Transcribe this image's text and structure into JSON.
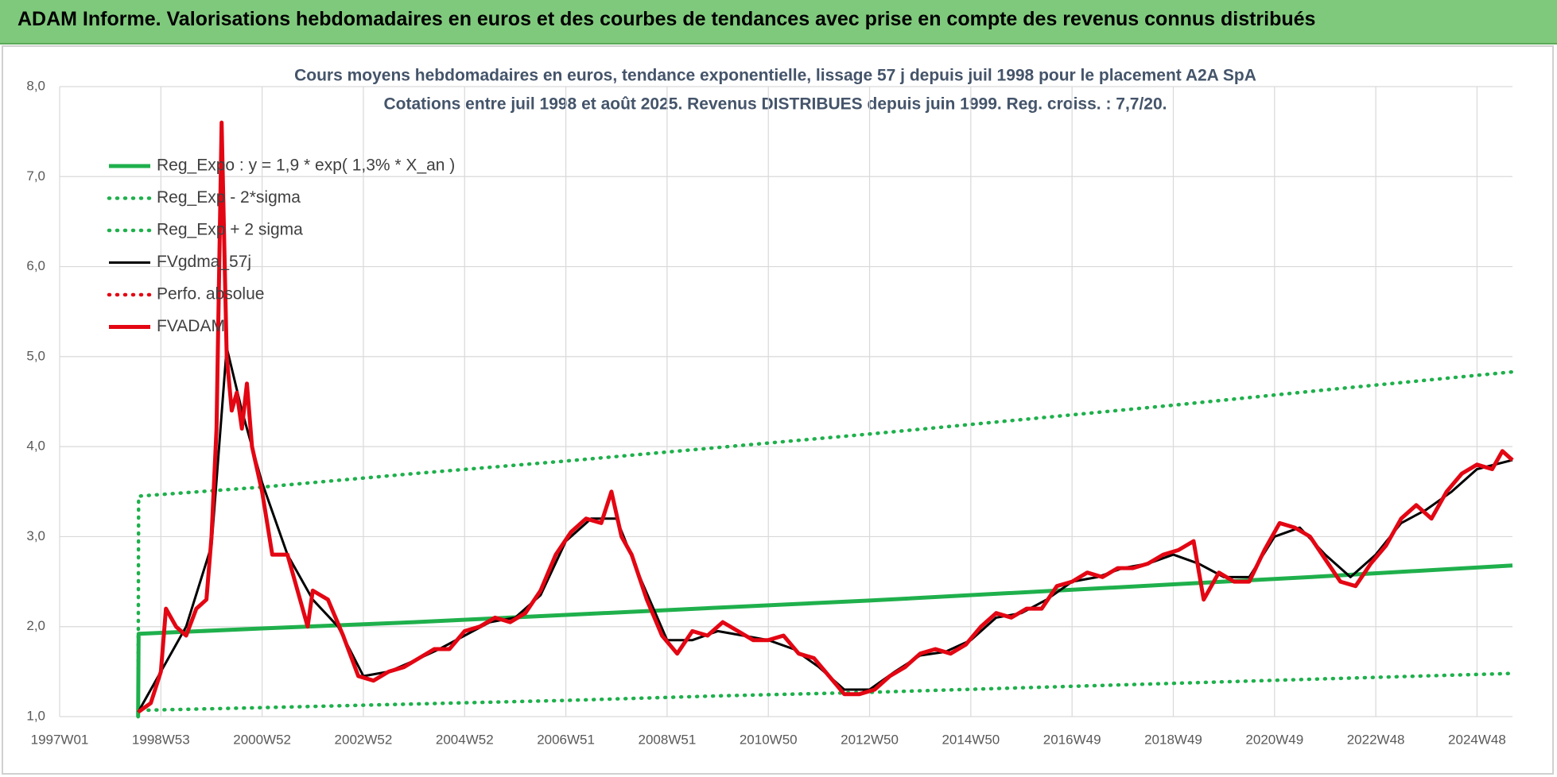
{
  "header": {
    "title": "ADAM Informe. Valorisations hebdomadaires en euros et des courbes de tendances avec prise en compte des revenus connus distribués"
  },
  "chart_data": {
    "type": "line",
    "title": "Cours moyens hebdomadaires en euros, tendance exponentielle, lissage 57 j depuis juil 1998 pour le placement A2A SpA",
    "subtitle": "Cotations entre juil 1998 et août 2025. Revenus DISTRIBUES depuis juin 1999. Reg. croiss. : 7,7/20.",
    "xlim": [
      1997,
      2025.7
    ],
    "xticks": [
      {
        "value": 1997,
        "label": "1997W01"
      },
      {
        "value": 1999,
        "label": "1998W53"
      },
      {
        "value": 2001,
        "label": "2000W52"
      },
      {
        "value": 2003,
        "label": "2002W52"
      },
      {
        "value": 2005,
        "label": "2004W52"
      },
      {
        "value": 2007,
        "label": "2006W51"
      },
      {
        "value": 2009,
        "label": "2008W51"
      },
      {
        "value": 2011,
        "label": "2010W50"
      },
      {
        "value": 2013,
        "label": "2012W50"
      },
      {
        "value": 2015,
        "label": "2014W50"
      },
      {
        "value": 2017,
        "label": "2016W49"
      },
      {
        "value": 2019,
        "label": "2018W49"
      },
      {
        "value": 2021,
        "label": "2020W49"
      },
      {
        "value": 2023,
        "label": "2022W48"
      },
      {
        "value": 2025,
        "label": "2024W48"
      }
    ],
    "ylim": [
      1,
      8
    ],
    "yticks": [
      {
        "value": 1,
        "label": "1,0"
      },
      {
        "value": 2,
        "label": "2,0"
      },
      {
        "value": 3,
        "label": "3,0"
      },
      {
        "value": 4,
        "label": "4,0"
      },
      {
        "value": 5,
        "label": "5,0"
      },
      {
        "value": 6,
        "label": "6,0"
      },
      {
        "value": 7,
        "label": "7,0"
      },
      {
        "value": 8,
        "label": "8,0"
      }
    ],
    "grid": true,
    "legend": "top-left",
    "series": [
      {
        "name": "Reg_Expo : y = 1,9 * exp( 1,3% *  X_an )",
        "color": "#1fb04c",
        "style": "solid",
        "x": [
          1998.55,
          1998.56,
          2001,
          2004,
          2007,
          2010,
          2013,
          2016,
          2019,
          2022,
          2025.7
        ],
        "values": [
          1.0,
          1.92,
          1.98,
          2.05,
          2.13,
          2.21,
          2.29,
          2.38,
          2.47,
          2.56,
          2.68
        ]
      },
      {
        "name": "Reg_Exp - 2*sigma",
        "color": "#1fb04c",
        "style": "dotted",
        "x": [
          1998.55,
          1998.56,
          2001,
          2004,
          2007,
          2010,
          2013,
          2016,
          2019,
          2022,
          2025.7
        ],
        "values": [
          1.0,
          1.07,
          1.1,
          1.14,
          1.18,
          1.23,
          1.27,
          1.32,
          1.37,
          1.42,
          1.48
        ]
      },
      {
        "name": "Reg_Exp + 2 sigma",
        "color": "#1fb04c",
        "style": "dotted",
        "x": [
          1998.55,
          1998.56,
          2001,
          2004,
          2007,
          2010,
          2013,
          2016,
          2019,
          2022,
          2025.7
        ],
        "values": [
          1.0,
          3.45,
          3.55,
          3.7,
          3.84,
          3.99,
          4.14,
          4.3,
          4.46,
          4.63,
          4.83
        ]
      },
      {
        "name": "FVgdma_57j",
        "color": "#000000",
        "style": "solid",
        "x": [
          1998.55,
          1999.0,
          1999.5,
          2000.0,
          2000.3,
          2000.6,
          2001.0,
          2001.5,
          2002.0,
          2002.5,
          2003.0,
          2003.5,
          2004.0,
          2004.5,
          2005.0,
          2005.5,
          2006.0,
          2006.5,
          2007.0,
          2007.5,
          2008.0,
          2008.5,
          2009.0,
          2009.5,
          2010.0,
          2010.5,
          2011.0,
          2011.5,
          2012.0,
          2012.5,
          2013.0,
          2013.5,
          2014.0,
          2014.5,
          2015.0,
          2015.5,
          2016.0,
          2016.5,
          2017.0,
          2017.5,
          2018.0,
          2018.5,
          2019.0,
          2019.5,
          2020.0,
          2020.5,
          2021.0,
          2021.5,
          2022.0,
          2022.5,
          2023.0,
          2023.5,
          2024.0,
          2024.5,
          2025.0,
          2025.7
        ],
        "values": [
          1.05,
          1.5,
          2.0,
          2.9,
          5.1,
          4.4,
          3.6,
          2.8,
          2.3,
          2.0,
          1.45,
          1.5,
          1.62,
          1.75,
          1.9,
          2.05,
          2.1,
          2.35,
          2.95,
          3.2,
          3.2,
          2.5,
          1.85,
          1.85,
          1.95,
          1.9,
          1.85,
          1.75,
          1.55,
          1.3,
          1.3,
          1.5,
          1.68,
          1.72,
          1.85,
          2.1,
          2.15,
          2.3,
          2.5,
          2.55,
          2.65,
          2.7,
          2.8,
          2.7,
          2.55,
          2.55,
          3.0,
          3.1,
          2.8,
          2.55,
          2.8,
          3.15,
          3.3,
          3.5,
          3.75,
          3.85
        ]
      },
      {
        "name": "Perfo. absolue",
        "color": "#e30613",
        "style": "dotted"
      },
      {
        "name": "FVADAM",
        "color": "#e30613",
        "style": "solid",
        "x": [
          1998.55,
          1998.8,
          1999.0,
          1999.1,
          1999.3,
          1999.5,
          1999.7,
          1999.9,
          2000.0,
          2000.1,
          2000.2,
          2000.3,
          2000.4,
          2000.5,
          2000.6,
          2000.7,
          2000.8,
          2001.0,
          2001.2,
          2001.5,
          2001.7,
          2001.9,
          2002.0,
          2002.3,
          2002.6,
          2002.9,
          2003.2,
          2003.5,
          2003.8,
          2004.1,
          2004.4,
          2004.7,
          2005.0,
          2005.3,
          2005.6,
          2005.9,
          2006.2,
          2006.5,
          2006.8,
          2007.1,
          2007.4,
          2007.7,
          2007.9,
          2008.1,
          2008.3,
          2008.6,
          2008.9,
          2009.2,
          2009.5,
          2009.8,
          2010.1,
          2010.4,
          2010.7,
          2011.0,
          2011.3,
          2011.6,
          2011.9,
          2012.2,
          2012.5,
          2012.8,
          2013.1,
          2013.4,
          2013.7,
          2014.0,
          2014.3,
          2014.6,
          2014.9,
          2015.2,
          2015.5,
          2015.8,
          2016.1,
          2016.4,
          2016.7,
          2017.0,
          2017.3,
          2017.6,
          2017.9,
          2018.2,
          2018.5,
          2018.8,
          2019.1,
          2019.4,
          2019.6,
          2019.9,
          2020.2,
          2020.5,
          2020.8,
          2021.1,
          2021.4,
          2021.7,
          2022.0,
          2022.3,
          2022.6,
          2022.9,
          2023.2,
          2023.5,
          2023.8,
          2024.1,
          2024.4,
          2024.7,
          2025.0,
          2025.3,
          2025.5,
          2025.7
        ],
        "values": [
          1.05,
          1.15,
          1.5,
          2.2,
          2.0,
          1.9,
          2.2,
          2.3,
          3.0,
          4.2,
          7.6,
          5.0,
          4.4,
          4.6,
          4.2,
          4.7,
          4.0,
          3.5,
          2.8,
          2.8,
          2.4,
          2.0,
          2.4,
          2.3,
          1.9,
          1.45,
          1.4,
          1.5,
          1.55,
          1.65,
          1.75,
          1.75,
          1.95,
          2.0,
          2.1,
          2.05,
          2.15,
          2.4,
          2.8,
          3.05,
          3.2,
          3.15,
          3.5,
          3.0,
          2.8,
          2.3,
          1.9,
          1.7,
          1.95,
          1.9,
          2.05,
          1.95,
          1.85,
          1.85,
          1.9,
          1.7,
          1.65,
          1.45,
          1.25,
          1.25,
          1.3,
          1.45,
          1.55,
          1.7,
          1.75,
          1.7,
          1.8,
          2.0,
          2.15,
          2.1,
          2.2,
          2.2,
          2.45,
          2.5,
          2.6,
          2.55,
          2.65,
          2.65,
          2.7,
          2.8,
          2.85,
          2.95,
          2.3,
          2.6,
          2.5,
          2.5,
          2.85,
          3.15,
          3.1,
          3.0,
          2.75,
          2.5,
          2.45,
          2.7,
          2.9,
          3.2,
          3.35,
          3.2,
          3.5,
          3.7,
          3.8,
          3.75,
          3.95,
          3.85
        ]
      }
    ]
  }
}
